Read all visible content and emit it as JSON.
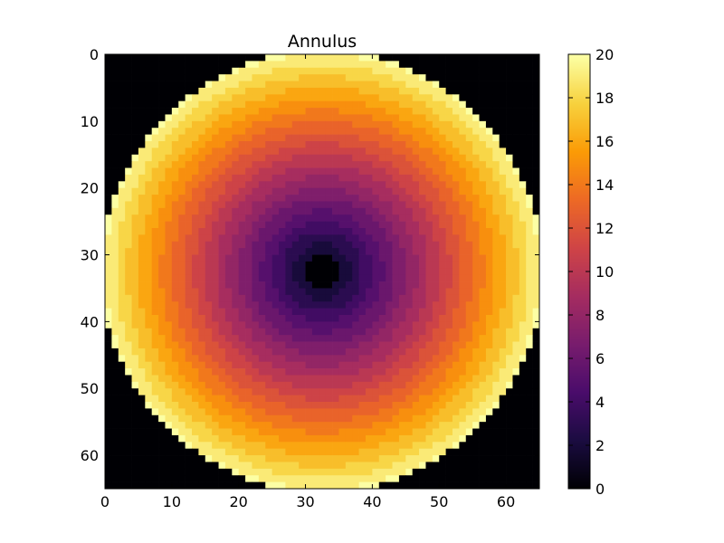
{
  "chart_data": {
    "type": "heatmap",
    "title": "Annulus",
    "xlabel": "",
    "ylabel": "",
    "grid_size": 65,
    "xlim": [
      0,
      65
    ],
    "ylim": [
      65,
      0
    ],
    "x_ticks": [
      0,
      10,
      20,
      30,
      40,
      50,
      60
    ],
    "y_ticks": [
      0,
      10,
      20,
      30,
      40,
      50,
      60
    ],
    "x_tick_labels": [
      "0",
      "10",
      "20",
      "30",
      "40",
      "50",
      "60"
    ],
    "y_tick_labels": [
      "0",
      "10",
      "20",
      "30",
      "40",
      "50",
      "60"
    ],
    "center": [
      32,
      32
    ],
    "value_formula": "distance from center",
    "inner_radius_zero": 2.3,
    "outer_radius_zero": 33,
    "cell_value_step": 1,
    "colormap": "inferno",
    "clim": [
      0,
      20
    ],
    "colorbar": {
      "ticks": [
        0,
        2,
        4,
        6,
        8,
        10,
        12,
        14,
        16,
        18,
        20
      ],
      "tick_labels": [
        "0",
        "2",
        "4",
        "6",
        "8",
        "10",
        "12",
        "14",
        "16",
        "18",
        "20"
      ]
    },
    "colors": {
      "inferno": [
        "#000004",
        "#1b0c41",
        "#4a0c6b",
        "#781c6d",
        "#a52c60",
        "#cf4446",
        "#ed6925",
        "#fb9b06",
        "#f7d13d",
        "#fcffa4"
      ]
    }
  }
}
